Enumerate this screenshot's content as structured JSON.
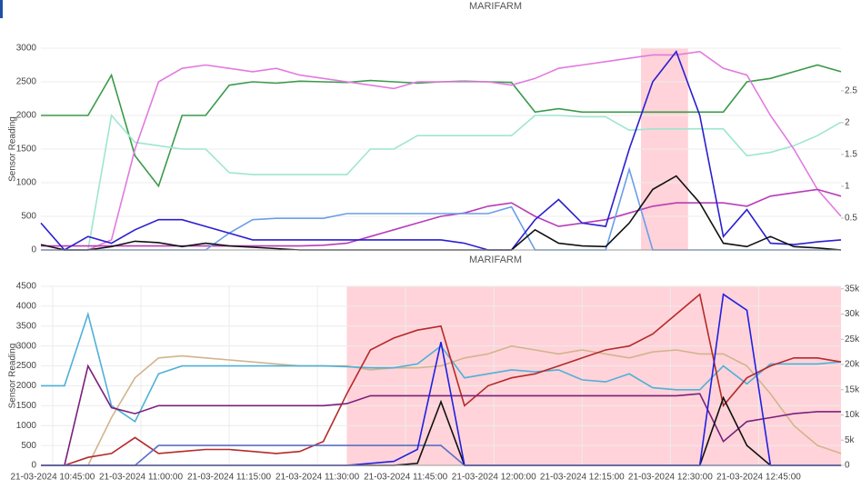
{
  "chart_data": [
    {
      "type": "line",
      "title": "MARIFARM",
      "y_label": "Sensor Reading",
      "grid": true,
      "x": [
        "21-03-2024 10:43:00",
        "21-03-2024 10:47:00",
        "21-03-2024 10:51:00",
        "21-03-2024 10:55:00",
        "21-03-2024 10:59:00",
        "21-03-2024 11:03:00",
        "21-03-2024 11:07:00",
        "21-03-2024 11:11:00",
        "21-03-2024 11:15:00",
        "21-03-2024 11:19:00",
        "21-03-2024 11:23:00",
        "21-03-2024 11:27:00",
        "21-03-2024 11:31:00",
        "21-03-2024 11:35:00",
        "21-03-2024 11:39:00",
        "21-03-2024 11:43:00",
        "21-03-2024 11:47:00",
        "21-03-2024 11:51:00",
        "21-03-2024 11:55:00",
        "21-03-2024 11:59:00",
        "21-03-2024 12:03:00",
        "21-03-2024 12:07:00",
        "21-03-2024 12:11:00",
        "21-03-2024 12:15:00",
        "21-03-2024 12:19:00",
        "21-03-2024 12:23:00",
        "21-03-2024 12:27:00",
        "21-03-2024 12:31:00",
        "21-03-2024 12:35:00",
        "21-03-2024 12:39:00",
        "21-03-2024 12:43:00",
        "21-03-2024 12:47:00",
        "21-03-2024 12:51:00",
        "21-03-2024 12:55:00",
        "21-03-2024 12:59:00"
      ],
      "xlim": [
        "21-03-2024 10:43:00",
        "21-03-2024 12:59:00"
      ],
      "highlight": [
        "21-03-2024 12:25:00",
        "21-03-2024 12:33:00"
      ],
      "ylim": [
        0,
        3000
      ],
      "yticks": [
        0,
        500,
        1000,
        1500,
        2000,
        2500,
        3000
      ],
      "y2lim": [
        0,
        3.17
      ],
      "y2ticks": [
        0.5,
        1,
        1.5,
        2,
        2.5
      ],
      "series": [
        {
          "color": "#3a9a4a",
          "values": [
            2000,
            2000,
            2000,
            2600,
            1400,
            950,
            2000,
            2000,
            2450,
            2500,
            2480,
            2510,
            2500,
            2490,
            2520,
            2500,
            2480,
            2500,
            2510,
            2500,
            2490,
            2050,
            2100,
            2050,
            2050,
            2050,
            2050,
            2050,
            2050,
            2050,
            2500,
            2550,
            2650,
            2750,
            2650
          ]
        },
        {
          "color": "#9ee6d0",
          "values": [
            0,
            0,
            0,
            2000,
            1600,
            1550,
            1500,
            1500,
            1150,
            1120,
            1120,
            1120,
            1120,
            1120,
            1500,
            1500,
            1700,
            1700,
            1700,
            1700,
            1700,
            2000,
            2000,
            1980,
            1980,
            1780,
            1800,
            1800,
            1800,
            1800,
            1400,
            1450,
            1550,
            1700,
            1900
          ]
        },
        {
          "color": "#e27ae0",
          "values": [
            0,
            0,
            0,
            150,
            1500,
            2500,
            2700,
            2750,
            2700,
            2650,
            2700,
            2600,
            2550,
            2500,
            2450,
            2400,
            2500,
            2500,
            2500,
            2500,
            2450,
            2550,
            2700,
            2750,
            2800,
            2850,
            2900,
            2900,
            2950,
            2700,
            2600,
            2000,
            1500,
            900,
            500
          ]
        },
        {
          "color": "#b83cb8",
          "values": [
            60,
            60,
            60,
            60,
            60,
            60,
            60,
            60,
            60,
            60,
            60,
            60,
            70,
            100,
            200,
            300,
            400,
            500,
            550,
            650,
            700,
            500,
            350,
            400,
            450,
            550,
            650,
            700,
            700,
            700,
            650,
            800,
            850,
            900,
            800
          ]
        },
        {
          "color": "#6a9ee8",
          "values": [
            0,
            0,
            0,
            0,
            0,
            0,
            0,
            0,
            250,
            450,
            470,
            470,
            470,
            540,
            540,
            540,
            540,
            540,
            540,
            540,
            640,
            0,
            0,
            0,
            0,
            1200,
            0,
            0,
            0,
            0,
            0,
            0,
            0,
            0,
            0
          ]
        },
        {
          "color": "#2a1fd0",
          "values": [
            400,
            0,
            200,
            100,
            300,
            450,
            450,
            350,
            250,
            150,
            150,
            150,
            150,
            150,
            150,
            150,
            150,
            150,
            100,
            0,
            0,
            450,
            750,
            400,
            350,
            1500,
            2500,
            2950,
            2000,
            200,
            600,
            100,
            80,
            120,
            150
          ]
        },
        {
          "color": "#111111",
          "values": [
            80,
            0,
            0,
            50,
            130,
            110,
            50,
            100,
            60,
            40,
            20,
            0,
            0,
            0,
            0,
            0,
            0,
            0,
            0,
            0,
            0,
            300,
            100,
            60,
            50,
            400,
            900,
            1100,
            700,
            100,
            50,
            200,
            50,
            30,
            0
          ]
        }
      ]
    },
    {
      "type": "line",
      "title": "MARIFARM",
      "y_label": "Sensor Reading",
      "grid": true,
      "x": [
        "21-03-2024 10:43:00",
        "21-03-2024 10:47:00",
        "21-03-2024 10:51:00",
        "21-03-2024 10:55:00",
        "21-03-2024 10:59:00",
        "21-03-2024 11:03:00",
        "21-03-2024 11:07:00",
        "21-03-2024 11:11:00",
        "21-03-2024 11:15:00",
        "21-03-2024 11:19:00",
        "21-03-2024 11:23:00",
        "21-03-2024 11:27:00",
        "21-03-2024 11:31:00",
        "21-03-2024 11:35:00",
        "21-03-2024 11:39:00",
        "21-03-2024 11:43:00",
        "21-03-2024 11:47:00",
        "21-03-2024 11:51:00",
        "21-03-2024 11:55:00",
        "21-03-2024 11:59:00",
        "21-03-2024 12:03:00",
        "21-03-2024 12:07:00",
        "21-03-2024 12:11:00",
        "21-03-2024 12:15:00",
        "21-03-2024 12:19:00",
        "21-03-2024 12:23:00",
        "21-03-2024 12:27:00",
        "21-03-2024 12:31:00",
        "21-03-2024 12:35:00",
        "21-03-2024 12:39:00",
        "21-03-2024 12:43:00",
        "21-03-2024 12:47:00",
        "21-03-2024 12:51:00",
        "21-03-2024 12:55:00",
        "21-03-2024 12:59:00"
      ],
      "xlim": [
        "21-03-2024 10:43:00",
        "21-03-2024 12:59:00"
      ],
      "xticks": [
        "21-03-2024 10:45:00",
        "21-03-2024 11:00:00",
        "21-03-2024 11:15:00",
        "21-03-2024 11:30:00",
        "21-03-2024 11:45:00",
        "21-03-2024 12:00:00",
        "21-03-2024 12:15:00",
        "21-03-2024 12:30:00",
        "21-03-2024 12:45:00"
      ],
      "highlight": [
        "21-03-2024 11:35:00",
        "21-03-2024 12:59:00"
      ],
      "ylim": [
        0,
        4500
      ],
      "yticks": [
        0,
        500,
        1000,
        1500,
        2000,
        2500,
        3000,
        3500,
        4000,
        4500
      ],
      "y2lim": [
        0,
        35500
      ],
      "y2ticks": [
        0,
        {
          "value": 5000,
          "label": "5k"
        },
        {
          "value": 10000,
          "label": "10k"
        },
        {
          "value": 15000,
          "label": "15k"
        },
        {
          "value": 20000,
          "label": "20k"
        },
        {
          "value": 25000,
          "label": "25k"
        },
        {
          "value": 30000,
          "label": "30k"
        },
        {
          "value": 35000,
          "label": "35k"
        }
      ],
      "series": [
        {
          "color": "#d2b48c",
          "values": [
            0,
            0,
            0,
            1200,
            2200,
            2700,
            2750,
            2700,
            2650,
            2600,
            2550,
            2500,
            2500,
            2500,
            2400,
            2450,
            2450,
            2500,
            2700,
            2800,
            3000,
            2900,
            2800,
            2900,
            2800,
            2700,
            2850,
            2900,
            2800,
            2800,
            2500,
            1800,
            1000,
            500,
            300
          ]
        },
        {
          "color": "#4fb0d8",
          "values": [
            2000,
            2000,
            3800,
            1500,
            1100,
            2300,
            2500,
            2500,
            2500,
            2500,
            2500,
            2500,
            2500,
            2480,
            2450,
            2450,
            2550,
            3000,
            2200,
            2300,
            2400,
            2350,
            2400,
            2150,
            2100,
            2300,
            1950,
            1900,
            1900,
            2500,
            2050,
            2550,
            2550,
            2550,
            2600
          ]
        },
        {
          "color": "#b52a2a",
          "values": [
            0,
            0,
            200,
            300,
            700,
            300,
            350,
            400,
            400,
            350,
            300,
            350,
            600,
            1800,
            2900,
            3200,
            3400,
            3500,
            1500,
            2000,
            2200,
            2300,
            2500,
            2700,
            2900,
            3000,
            3300,
            3800,
            4300,
            1500,
            2200,
            2500,
            2700,
            2700,
            2600
          ]
        },
        {
          "color": "#7b1f7b",
          "values": [
            0,
            0,
            2500,
            1450,
            1300,
            1500,
            1500,
            1500,
            1500,
            1500,
            1500,
            1500,
            1500,
            1550,
            1750,
            1750,
            1750,
            1750,
            1750,
            1750,
            1750,
            1750,
            1750,
            1750,
            1750,
            1750,
            1750,
            1750,
            1800,
            600,
            1100,
            1200,
            1300,
            1350,
            1350
          ]
        },
        {
          "color": "#5b6fc8",
          "values": [
            0,
            0,
            0,
            0,
            0,
            500,
            500,
            500,
            500,
            500,
            500,
            500,
            500,
            500,
            500,
            500,
            500,
            500,
            0,
            0,
            0,
            0,
            0,
            0,
            0,
            0,
            0,
            0,
            0,
            0,
            0,
            0,
            0,
            0,
            0
          ]
        },
        {
          "color": "#111111",
          "values": [
            0,
            0,
            0,
            0,
            0,
            0,
            0,
            0,
            0,
            0,
            0,
            0,
            0,
            0,
            0,
            0,
            50,
            1600,
            0,
            0,
            0,
            0,
            0,
            0,
            0,
            0,
            0,
            0,
            0,
            1700,
            500,
            0,
            0,
            0,
            0
          ]
        },
        {
          "color": "#2020e0",
          "values": [
            0,
            0,
            0,
            0,
            0,
            0,
            0,
            0,
            0,
            0,
            0,
            0,
            0,
            0,
            50,
            100,
            400,
            3100,
            0,
            0,
            0,
            0,
            0,
            0,
            0,
            0,
            0,
            0,
            0,
            4300,
            3900,
            0,
            0,
            0,
            0
          ]
        }
      ]
    }
  ]
}
